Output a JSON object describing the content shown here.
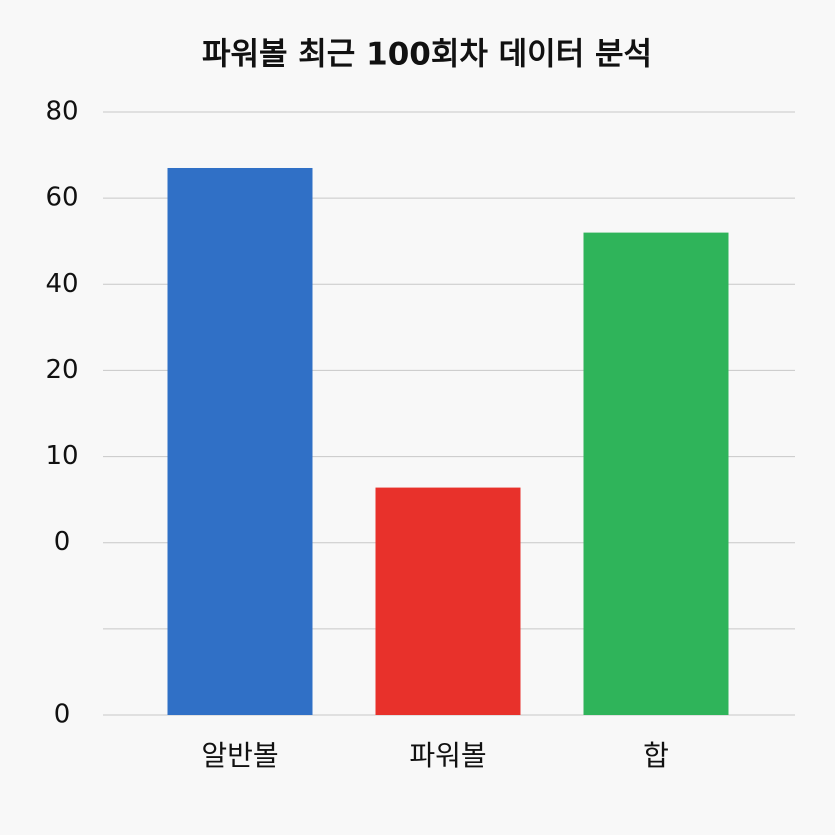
{
  "chart_data": {
    "type": "bar",
    "title": "파워볼 최근 100회차 데이터 분석",
    "categories": [
      "알반볼",
      "파워볼",
      "합"
    ],
    "series": [
      {
        "values": [
          67,
          6.4,
          52
        ],
        "colors": [
          "#3070c6",
          "#e8312b",
          "#2fb45a"
        ]
      }
    ],
    "yticks": [
      0,
      null,
      0,
      10,
      20,
      40,
      60,
      80
    ],
    "grid": true
  }
}
